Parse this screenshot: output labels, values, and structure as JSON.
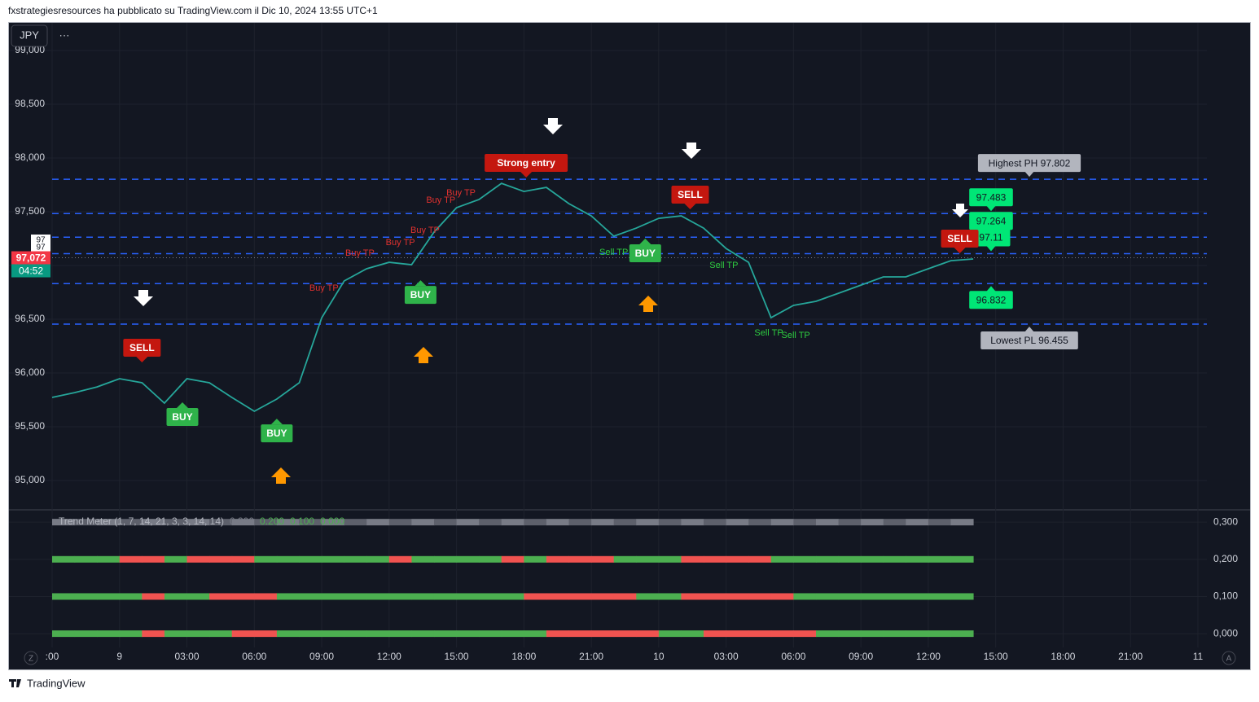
{
  "header": "fxstrategiesresources ha pubblicato su TradingView.com il Dic 10, 2024 13:55 UTC+1",
  "toolbar": {
    "symbol": "JPY",
    "menu": "···"
  },
  "scale_buttons": [
    "Z",
    "A"
  ],
  "footer": "TradingView",
  "chart_data": {
    "type": "line",
    "color": "#26a69a",
    "x": [
      -3,
      -2,
      -1,
      0,
      1,
      2,
      3,
      4,
      5,
      6,
      7,
      8,
      9,
      10,
      11,
      12,
      13,
      14,
      15,
      16,
      17,
      18,
      19,
      20,
      21,
      22,
      23,
      24,
      25,
      26,
      27,
      28,
      29,
      30,
      31,
      32,
      33,
      34,
      35,
      36,
      37,
      38
    ],
    "values": [
      95773,
      95818,
      95871,
      95947,
      95909,
      95720,
      95947,
      95909,
      95773,
      95644,
      95758,
      95909,
      96515,
      96856,
      96970,
      97030,
      97008,
      97311,
      97538,
      97614,
      97765,
      97689,
      97727,
      97576,
      97462,
      97273,
      97348,
      97439,
      97462,
      97348,
      97159,
      97030,
      96515,
      96629,
      96667,
      96742,
      96818,
      96894,
      96894,
      96970,
      97045,
      97061
    ],
    "xlim": [
      -3,
      48.4
    ],
    "xticks": [
      {
        "value": -3,
        "label": ":00"
      },
      {
        "value": 0,
        "label": "9"
      },
      {
        "value": 3,
        "label": "03:00"
      },
      {
        "value": 6,
        "label": "06:00"
      },
      {
        "value": 9,
        "label": "09:00"
      },
      {
        "value": 12,
        "label": "12:00"
      },
      {
        "value": 15,
        "label": "15:00"
      },
      {
        "value": 18,
        "label": "18:00"
      },
      {
        "value": 21,
        "label": "21:00"
      },
      {
        "value": 24,
        "label": "10"
      },
      {
        "value": 27,
        "label": "03:00"
      },
      {
        "value": 30,
        "label": "06:00"
      },
      {
        "value": 33,
        "label": "09:00"
      },
      {
        "value": 36,
        "label": "12:00"
      },
      {
        "value": 39,
        "label": "15:00"
      },
      {
        "value": 42,
        "label": "18:00"
      },
      {
        "value": 45,
        "label": "21:00"
      },
      {
        "value": 48,
        "label": "11"
      }
    ],
    "ylim": [
      94735,
      99258
    ],
    "yticks": [
      {
        "value": 95000,
        "label": "95,000"
      },
      {
        "value": 95500,
        "label": "95,500"
      },
      {
        "value": 96000,
        "label": "96,000"
      },
      {
        "value": 96500,
        "label": "96,500"
      },
      {
        "value": 97000,
        "label": "97,000"
      },
      {
        "value": 97500,
        "label": "97,500"
      },
      {
        "value": 98000,
        "label": "98,000"
      },
      {
        "value": 98500,
        "label": "98,500"
      },
      {
        "value": 99000,
        "label": "99,000"
      }
    ],
    "grid": true,
    "last_price": {
      "value": 97072,
      "label": "97,072"
    },
    "countdown": "04:52",
    "overlap_labels": [
      "97",
      "97"
    ],
    "levels": [
      {
        "value": 97802,
        "label": "Highest PH 97.802",
        "color": "#b2b5be"
      },
      {
        "value": 97483,
        "label": "97.483",
        "color": "#00e676"
      },
      {
        "value": 97264,
        "label": "97.264",
        "color": "#00e676"
      },
      {
        "value": 97110,
        "label": "97.11",
        "color": "#00e676"
      },
      {
        "value": 96832,
        "label": "96.832",
        "color": "#00e676"
      },
      {
        "value": 96455,
        "label": "Lowest PL 96.455",
        "color": "#b2b5be"
      }
    ],
    "signals": [
      {
        "text": "SELL",
        "x": 1.0,
        "y": 96235,
        "color": "#c4170f",
        "style": "box",
        "pointer": "down"
      },
      {
        "text": "BUY",
        "x": 2.8,
        "y": 95591,
        "color": "#2fb34a",
        "style": "box",
        "pointer": "up"
      },
      {
        "text": "BUY",
        "x": 7.0,
        "y": 95439,
        "color": "#2fb34a",
        "style": "box",
        "pointer": "up"
      },
      {
        "text": "BUY",
        "x": 13.4,
        "y": 96727,
        "color": "#2fb34a",
        "style": "box",
        "pointer": "up"
      },
      {
        "text": "Strong entry",
        "x": 18.1,
        "y": 97955,
        "color": "#c4170f",
        "style": "box",
        "pointer": "down"
      },
      {
        "text": "BUY",
        "x": 23.4,
        "y": 97114,
        "color": "#2fb34a",
        "style": "box",
        "pointer": "up"
      },
      {
        "text": "SELL",
        "x": 25.4,
        "y": 97659,
        "color": "#c4170f",
        "style": "box",
        "pointer": "down"
      },
      {
        "text": "SELL",
        "x": 37.4,
        "y": 97250,
        "color": "#c4170f",
        "style": "box",
        "pointer": "down"
      },
      {
        "text": "Buy TP",
        "x": 9.1,
        "y": 96788,
        "color": "#e0312f",
        "style": "text",
        "pointer": "none"
      },
      {
        "text": "Buy TP",
        "x": 10.7,
        "y": 97114,
        "color": "#e0312f",
        "style": "text",
        "pointer": "none"
      },
      {
        "text": "Buy TP",
        "x": 12.5,
        "y": 97212,
        "color": "#e0312f",
        "style": "text",
        "pointer": "none"
      },
      {
        "text": "Buy TP",
        "x": 13.6,
        "y": 97326,
        "color": "#e0312f",
        "style": "text",
        "pointer": "none"
      },
      {
        "text": "Buy TP",
        "x": 14.3,
        "y": 97606,
        "color": "#e0312f",
        "style": "text",
        "pointer": "none"
      },
      {
        "text": "Buy TP",
        "x": 15.2,
        "y": 97674,
        "color": "#e0312f",
        "style": "text",
        "pointer": "none"
      },
      {
        "text": "Sell TP",
        "x": 22.0,
        "y": 97121,
        "color": "#2ecc40",
        "style": "text",
        "pointer": "none"
      },
      {
        "text": "Sell TP",
        "x": 26.9,
        "y": 97000,
        "color": "#2ecc40",
        "style": "text",
        "pointer": "none"
      },
      {
        "text": "Sell TP",
        "x": 28.9,
        "y": 96371,
        "color": "#2ecc40",
        "style": "text",
        "pointer": "none"
      },
      {
        "text": "Sell TP",
        "x": 30.1,
        "y": 96348,
        "color": "#2ecc40",
        "style": "text",
        "pointer": "none"
      }
    ]
  },
  "indicator": {
    "title": "Trend Meter (1, 7, 14, 21, 3, 3, 14, 14)",
    "legend_values": [
      "0.300",
      "0.200",
      "0.100",
      "0.000"
    ],
    "ylim": [
      -0.037,
      0.331
    ],
    "yticks": [
      {
        "value": 0.3,
        "label": "0,300"
      },
      {
        "value": 0.2,
        "label": "0,200"
      },
      {
        "value": 0.1,
        "label": "0,100"
      },
      {
        "value": 0,
        "label": "0,000"
      }
    ]
  }
}
